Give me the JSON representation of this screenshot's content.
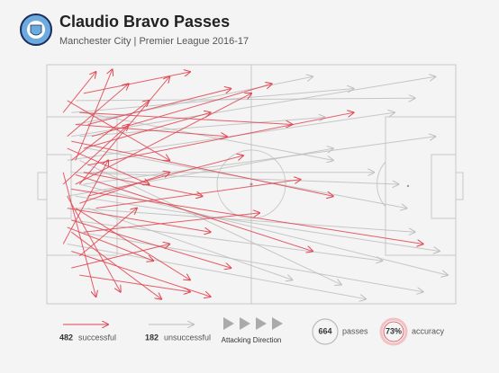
{
  "chart_data": {
    "type": "pass_map",
    "title": "Claudio Bravo Passes",
    "subtitle": "Manchester City | Premier League 2016-17",
    "xlim": [
      0,
      100
    ],
    "ylim": [
      0,
      100
    ],
    "series": [
      {
        "name": "unsuccessful",
        "color": "#bdbdbd",
        "count": 182,
        "passes": [
          [
            6,
            30,
            95,
            5
          ],
          [
            8,
            50,
            98,
            88
          ],
          [
            5,
            40,
            85,
            20
          ],
          [
            7,
            60,
            90,
            70
          ],
          [
            9,
            45,
            80,
            45
          ],
          [
            6,
            20,
            75,
            10
          ],
          [
            8,
            70,
            92,
            95
          ],
          [
            5,
            55,
            70,
            35
          ],
          [
            10,
            35,
            88,
            60
          ],
          [
            7,
            25,
            65,
            5
          ],
          [
            6,
            65,
            82,
            82
          ],
          [
            9,
            50,
            95,
            30
          ],
          [
            8,
            40,
            72,
            92
          ],
          [
            5,
            75,
            78,
            98
          ],
          [
            7,
            15,
            90,
            14
          ],
          [
            10,
            60,
            60,
            90
          ],
          [
            6,
            45,
            86,
            50
          ],
          [
            8,
            30,
            68,
            22
          ],
          [
            7,
            55,
            96,
            78
          ],
          [
            9,
            20,
            70,
            40
          ]
        ]
      },
      {
        "name": "successful",
        "color": "#e0434f",
        "count": 482,
        "passes": [
          [
            4,
            20,
            12,
            3
          ],
          [
            5,
            30,
            20,
            8
          ],
          [
            6,
            40,
            25,
            15
          ],
          [
            8,
            50,
            30,
            5
          ],
          [
            5,
            55,
            18,
            95
          ],
          [
            7,
            60,
            35,
            90
          ],
          [
            9,
            35,
            40,
            20
          ],
          [
            4,
            45,
            12,
            97
          ],
          [
            6,
            70,
            28,
            98
          ],
          [
            10,
            25,
            45,
            10
          ],
          [
            8,
            80,
            22,
            60
          ],
          [
            5,
            15,
            30,
            40
          ],
          [
            7,
            50,
            50,
            12
          ],
          [
            6,
            65,
            45,
            85
          ],
          [
            9,
            45,
            38,
            55
          ],
          [
            4,
            75,
            15,
            40
          ],
          [
            11,
            30,
            55,
            8
          ],
          [
            6,
            85,
            30,
            75
          ],
          [
            8,
            20,
            60,
            25
          ],
          [
            5,
            60,
            40,
            70
          ],
          [
            10,
            55,
            48,
            38
          ],
          [
            7,
            40,
            16,
            2
          ],
          [
            6,
            52,
            92,
            75
          ],
          [
            9,
            70,
            52,
            62
          ],
          [
            5,
            35,
            25,
            50
          ],
          [
            8,
            88,
            35,
            95
          ],
          [
            7,
            25,
            44,
            30
          ],
          [
            12,
            60,
            62,
            48
          ],
          [
            4,
            50,
            20,
            25
          ],
          [
            6,
            78,
            40,
            97
          ],
          [
            10,
            42,
            75,
            20
          ],
          [
            8,
            58,
            30,
            45
          ],
          [
            5,
            68,
            26,
            82
          ],
          [
            9,
            12,
            35,
            3
          ],
          [
            7,
            46,
            65,
            78
          ],
          [
            6,
            32,
            70,
            55
          ]
        ]
      }
    ],
    "direction_label": "Attacking Direction",
    "total_passes": 664,
    "total_label": "passes",
    "accuracy": 73,
    "accuracy_value_label": "73%",
    "accuracy_label": "accuracy"
  }
}
